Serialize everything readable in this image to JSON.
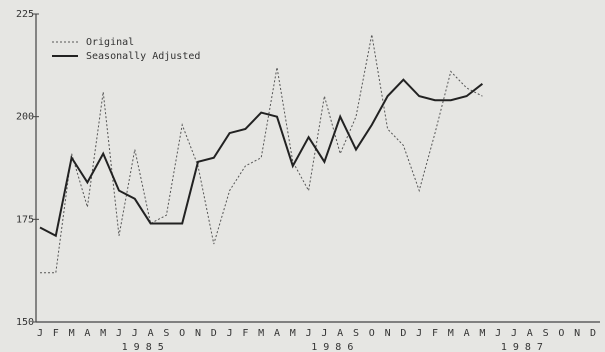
{
  "chart_data": {
    "type": "line",
    "categories": [
      "J",
      "F",
      "M",
      "A",
      "M",
      "J",
      "J",
      "A",
      "S",
      "O",
      "N",
      "D",
      "J",
      "F",
      "M",
      "A",
      "M",
      "J",
      "J",
      "A",
      "S",
      "O",
      "N",
      "D",
      "J",
      "F",
      "M",
      "A",
      "M",
      "J",
      "J",
      "A",
      "S",
      "O",
      "N",
      "D"
    ],
    "year_labels": [
      "1 9 8 5",
      "1 9 8 6",
      "1 9 8 7"
    ],
    "series": [
      {
        "name": "Original",
        "color": "#555555",
        "dash": true,
        "values": [
          162,
          162,
          191,
          178,
          206,
          171,
          192,
          174,
          176,
          198,
          188,
          169,
          182,
          188,
          190,
          212,
          189,
          182,
          205,
          191,
          200,
          220,
          197,
          193,
          182,
          196,
          211,
          207,
          205,
          null,
          null,
          null,
          null,
          null,
          null,
          null
        ]
      },
      {
        "name": "Seasonally Adjusted",
        "color": "#222222",
        "dash": false,
        "values": [
          173,
          171,
          190,
          184,
          191,
          182,
          180,
          174,
          174,
          174,
          189,
          190,
          196,
          197,
          201,
          200,
          188,
          195,
          189,
          200,
          192,
          198,
          205,
          209,
          205,
          204,
          204,
          205,
          208,
          null,
          null,
          null,
          null,
          null,
          null,
          null
        ]
      }
    ],
    "ylim": [
      150,
      225
    ],
    "yticks": [
      150,
      175,
      200,
      225
    ]
  }
}
